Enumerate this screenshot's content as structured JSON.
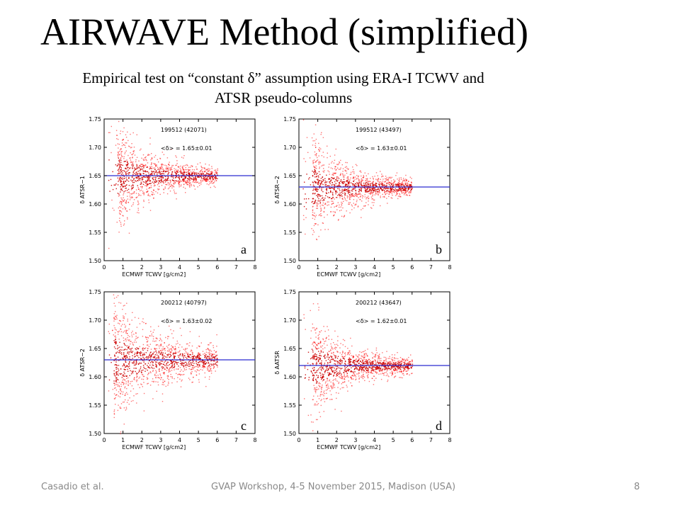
{
  "slide": {
    "title": "AIRWAVE Method (simplified)",
    "subtitle_line1": "Empirical test on “constant δ” assumption using ERA-I TCWV and",
    "subtitle_line2": "ATSR pseudo-columns"
  },
  "footer": {
    "left": "Casadio et al.",
    "center": "GVAP Workshop, 4-5 November 2015, Madison (USA)",
    "page": "8"
  },
  "colors": {
    "scatter": "#ff0000",
    "scatter_dense": "#cc0000",
    "reference_line": "#2b2bd0",
    "axis": "#000000"
  },
  "chart_data": [
    {
      "type": "scatter",
      "panel_letter": "a",
      "annotation_period": "199512 (42071)",
      "annotation_mean": "<δ> = 1.65±0.01",
      "xlabel": "ECMWF TCWV [g/cm2]",
      "ylabel": "δ ATSR−1",
      "xlim": [
        0,
        8
      ],
      "ylim": [
        1.5,
        1.75
      ],
      "xticks": [
        "0",
        "1",
        "2",
        "3",
        "4",
        "5",
        "6",
        "7",
        "8"
      ],
      "yticks": [
        "1.50",
        "1.55",
        "1.60",
        "1.65",
        "1.70",
        "1.75"
      ],
      "mean_delta": 1.65,
      "spread": 0.01,
      "cloud_x_range": [
        0.7,
        6.0
      ],
      "dense_core_y_range": [
        1.63,
        1.67
      ]
    },
    {
      "type": "scatter",
      "panel_letter": "b",
      "annotation_period": "199512 (43497)",
      "annotation_mean": "<δ> = 1.63±0.01",
      "xlabel": "ECMWF TCWV [g/cm2]",
      "ylabel": "δ ATSR−2",
      "xlim": [
        0,
        8
      ],
      "ylim": [
        1.5,
        1.75
      ],
      "xticks": [
        "0",
        "1",
        "2",
        "3",
        "4",
        "5",
        "6",
        "7",
        "8"
      ],
      "yticks": [
        "1.50",
        "1.55",
        "1.60",
        "1.65",
        "1.70",
        "1.75"
      ],
      "mean_delta": 1.63,
      "spread": 0.01,
      "cloud_x_range": [
        0.7,
        6.0
      ],
      "dense_core_y_range": [
        1.61,
        1.65
      ]
    },
    {
      "type": "scatter",
      "panel_letter": "c",
      "annotation_period": "200212 (40797)",
      "annotation_mean": "<δ> = 1.63±0.02",
      "xlabel": "ECMWF TCWV [g/cm2]",
      "ylabel": "δ ATSR−2",
      "xlim": [
        0,
        8
      ],
      "ylim": [
        1.5,
        1.75
      ],
      "xticks": [
        "0",
        "1",
        "2",
        "3",
        "4",
        "5",
        "6",
        "7",
        "8"
      ],
      "yticks": [
        "1.50",
        "1.55",
        "1.60",
        "1.65",
        "1.70",
        "1.75"
      ],
      "mean_delta": 1.63,
      "spread": 0.02,
      "cloud_x_range": [
        0.5,
        6.0
      ],
      "dense_core_y_range": [
        1.61,
        1.65
      ]
    },
    {
      "type": "scatter",
      "panel_letter": "d",
      "annotation_period": "200212 (43647)",
      "annotation_mean": "<δ> = 1.62±0.01",
      "xlabel": "ECMWF TCWV [g/cm2]",
      "ylabel": "δ AATSR",
      "xlim": [
        0,
        8
      ],
      "ylim": [
        1.5,
        1.75
      ],
      "xticks": [
        "0",
        "1",
        "2",
        "3",
        "4",
        "5",
        "6",
        "7",
        "8"
      ],
      "yticks": [
        "1.50",
        "1.55",
        "1.60",
        "1.65",
        "1.70",
        "1.75"
      ],
      "mean_delta": 1.62,
      "spread": 0.01,
      "cloud_x_range": [
        0.7,
        6.0
      ],
      "dense_core_y_range": [
        1.6,
        1.64
      ]
    }
  ]
}
